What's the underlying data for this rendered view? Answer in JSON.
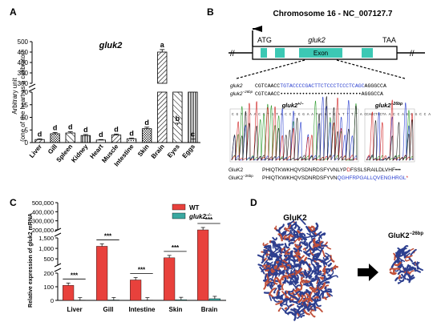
{
  "panels": {
    "A": "A",
    "B": "B",
    "C": "C",
    "D": "D"
  },
  "panel_a": {
    "title": "gluk2",
    "ylabel_1": "Arbitrary unit",
    "ylabel_2": "(one of the heart as a calibrator)",
    "ytick_top": [
      "500",
      "450",
      "400",
      "350",
      "300"
    ],
    "ytick_bottom": [
      "20",
      "15",
      "10",
      "5",
      "0"
    ],
    "letters": [
      "d",
      "d",
      "d",
      "d",
      "d",
      "d",
      "d",
      "d",
      "a",
      "b",
      "c"
    ]
  },
  "panel_b": {
    "title": "Chromosome 16 - NC_007127.7",
    "atg": "ATG",
    "taa": "TAA",
    "gene": "gluk2",
    "exon": "Exon",
    "wt_label": "gluk2",
    "mut_label": "gluk2",
    "mut_sup": "−26bp",
    "wt_seq_black1": "CGTCAACC",
    "wt_seq_blue": "TGTACCCCGACTTCTCCCTCCCTCAGC",
    "wt_seq_black2": "AGGGCCA",
    "mut_seq_black1": "CGTCAACC",
    "mut_seq_dots": "••••••••••••••••••••••••••",
    "mut_seq_black2": "AGGGCCA",
    "het_label": "gluk2",
    "het_sup": "+/−",
    "hom_label": "gluk2",
    "hom_sup": "−26bp",
    "chrom_seq_left": "C G T C A A C C T G T A C C C C G A A T G G T C A T T T T A C A C C T",
    "chrom_seq_right": "C G T C A A C C A G G G C C A",
    "prot_wt_label": "GluK2",
    "prot_mut_label": "GluK2",
    "prot_mut_sup": "−26bp",
    "prot_wt_seq1": "PHIQTKWKHQVSDNRDSFYVNLYP",
    "prot_wt_red": "D",
    "prot_wt_seq2": "FSSLSRAILDLVHF",
    "prot_wt_dots": "•••",
    "prot_mut_seq1": "PHIQTKWKHQVSDNRDSFYVN",
    "prot_mut_blue": "QGHFRPGALLQVENGHRGL",
    "prot_mut_star": "*"
  },
  "panel_c": {
    "ylabel": "Relative expression of gluk2 mRNA",
    "yticks_top": [
      "500,000",
      "400,000",
      "300,000",
      "200,000"
    ],
    "yticks_mid": [
      "1,500",
      "1,000",
      "500"
    ],
    "yticks_bot": [
      "200",
      "100",
      "0"
    ],
    "sig": "***",
    "legend_wt": "WT",
    "legend_mut": "gluk2",
    "legend_mut_sup": "−/−"
  },
  "panel_d": {
    "label_wt": "GluK2",
    "label_mut": "GluK2",
    "label_mut_sup": "−26bp"
  },
  "colors": {
    "wt_bar": "#e8413c",
    "mut_bar": "#3aa8a0",
    "exon": "#3cc8b4",
    "blue_seq": "#2a3fcf",
    "red_seq": "#d02020",
    "protein_blue": "#2d3f8f",
    "protein_red": "#c0503a"
  },
  "chart_data": [
    {
      "type": "bar",
      "title": "gluk2",
      "ylabel": "Arbitrary unit (one of the heart as a calibrator)",
      "categories": [
        "Liver",
        "Gill",
        "Spleen",
        "Kidney",
        "Heart",
        "Muscle",
        "Intestine",
        "Skin",
        "Brain",
        "Eyes",
        "Eggs"
      ],
      "values": [
        1.2,
        3.5,
        3.8,
        2.8,
        1.0,
        3.0,
        1.5,
        5.5,
        450,
        100,
        30
      ],
      "errors": [
        0.3,
        0.5,
        0.5,
        0.4,
        0.2,
        0.4,
        0.3,
        0.6,
        12,
        8,
        2
      ],
      "letters": [
        "d",
        "d",
        "d",
        "d",
        "d",
        "d",
        "d",
        "d",
        "a",
        "b",
        "c"
      ],
      "axis_break": [
        20,
        300
      ],
      "ylim": [
        0,
        500
      ]
    },
    {
      "type": "bar",
      "ylabel": "Relative expression of gluk2 mRNA",
      "categories": [
        "Liver",
        "Gill",
        "Intestine",
        "Skin",
        "Brain"
      ],
      "series": [
        {
          "name": "WT",
          "values": [
            110,
            1100,
            150,
            550,
            200000
          ]
        },
        {
          "name": "gluk2−/−",
          "values": [
            2,
            3,
            2,
            5,
            12
          ]
        }
      ],
      "significance": [
        "***",
        "***",
        "***",
        "***",
        "***"
      ],
      "axis_breaks": [
        [
          200,
          200
        ],
        [
          1500,
          200000
        ]
      ],
      "ylim": [
        0,
        500000
      ]
    }
  ]
}
